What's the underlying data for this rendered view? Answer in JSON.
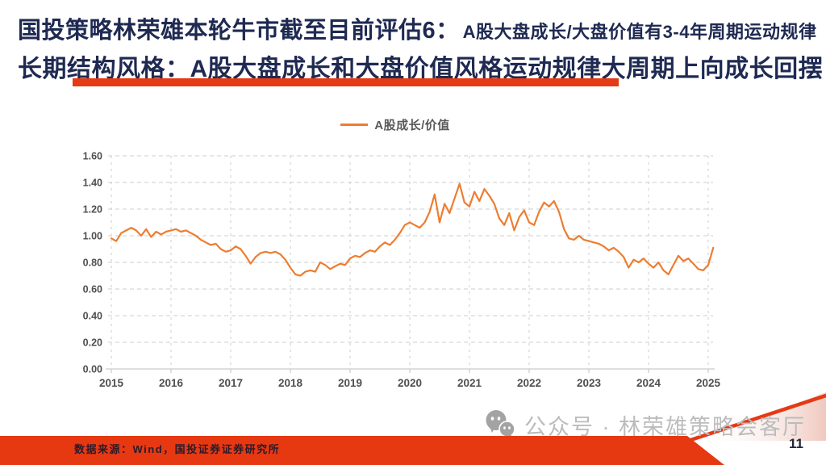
{
  "header": {
    "title_main": "国投策略林荣雄本轮牛市截至目前评估6：",
    "title_sub": "A股大盘成长/大盘价值有3-4年周期运动规律",
    "title_line2": "长期结构风格：A股大盘成长和大盘价值风格运动规律大周期上向成长回摆"
  },
  "chart_data": {
    "type": "line",
    "title": "",
    "legend": "A股成长/价值",
    "legend_position": "top-center",
    "grid": "dashed",
    "x_axis": {
      "ticks": [
        2015,
        2016,
        2017,
        2018,
        2019,
        2020,
        2021,
        2022,
        2023,
        2024,
        2025
      ]
    },
    "y_axis": {
      "ticks": [
        0.0,
        0.2,
        0.4,
        0.6,
        0.8,
        1.0,
        1.2,
        1.4,
        1.6
      ],
      "format": "0.00"
    },
    "xlim": [
      2015,
      2025.2
    ],
    "ylim": [
      0,
      1.6
    ],
    "series": [
      {
        "name": "A股成长/价值",
        "color": "#ED7D31",
        "start_year": 2015,
        "points_per_year": 12,
        "values": [
          0.98,
          0.96,
          1.02,
          1.04,
          1.06,
          1.04,
          1.0,
          1.05,
          0.99,
          1.03,
          1.01,
          1.03,
          1.04,
          1.05,
          1.03,
          1.04,
          1.02,
          1.0,
          0.97,
          0.95,
          0.93,
          0.94,
          0.9,
          0.88,
          0.89,
          0.92,
          0.9,
          0.85,
          0.79,
          0.84,
          0.87,
          0.88,
          0.87,
          0.88,
          0.86,
          0.82,
          0.76,
          0.71,
          0.7,
          0.73,
          0.74,
          0.73,
          0.8,
          0.78,
          0.75,
          0.77,
          0.79,
          0.78,
          0.83,
          0.85,
          0.84,
          0.87,
          0.89,
          0.88,
          0.92,
          0.95,
          0.93,
          0.97,
          1.02,
          1.08,
          1.1,
          1.08,
          1.06,
          1.1,
          1.18,
          1.31,
          1.1,
          1.24,
          1.17,
          1.28,
          1.39,
          1.25,
          1.22,
          1.33,
          1.26,
          1.35,
          1.3,
          1.24,
          1.13,
          1.08,
          1.17,
          1.04,
          1.14,
          1.19,
          1.1,
          1.08,
          1.18,
          1.25,
          1.22,
          1.26,
          1.18,
          1.05,
          0.98,
          0.97,
          1.0,
          0.97,
          0.96,
          0.95,
          0.94,
          0.92,
          0.89,
          0.91,
          0.88,
          0.84,
          0.76,
          0.82,
          0.8,
          0.83,
          0.79,
          0.76,
          0.8,
          0.74,
          0.71,
          0.78,
          0.85,
          0.81,
          0.83,
          0.79,
          0.75,
          0.74,
          0.78,
          0.91
        ]
      }
    ]
  },
  "watermark": {
    "text": "公众号 · 林荣雄策略会客厅",
    "icon": "wechat-icon"
  },
  "footer": {
    "source": "数据来源：Wind，国投证券证券研究所",
    "page_number": "11"
  },
  "colors": {
    "accent_red": "#E43A15",
    "band_red": "#E63912",
    "title_navy": "#1F2A52",
    "line_orange": "#ED7D31",
    "axis_label_gray": "#4f4f4f",
    "gridline_gray": "#cdcdcd",
    "watermark_gray": "#bcbcbc",
    "corner_pink": "#f0c9bf"
  }
}
